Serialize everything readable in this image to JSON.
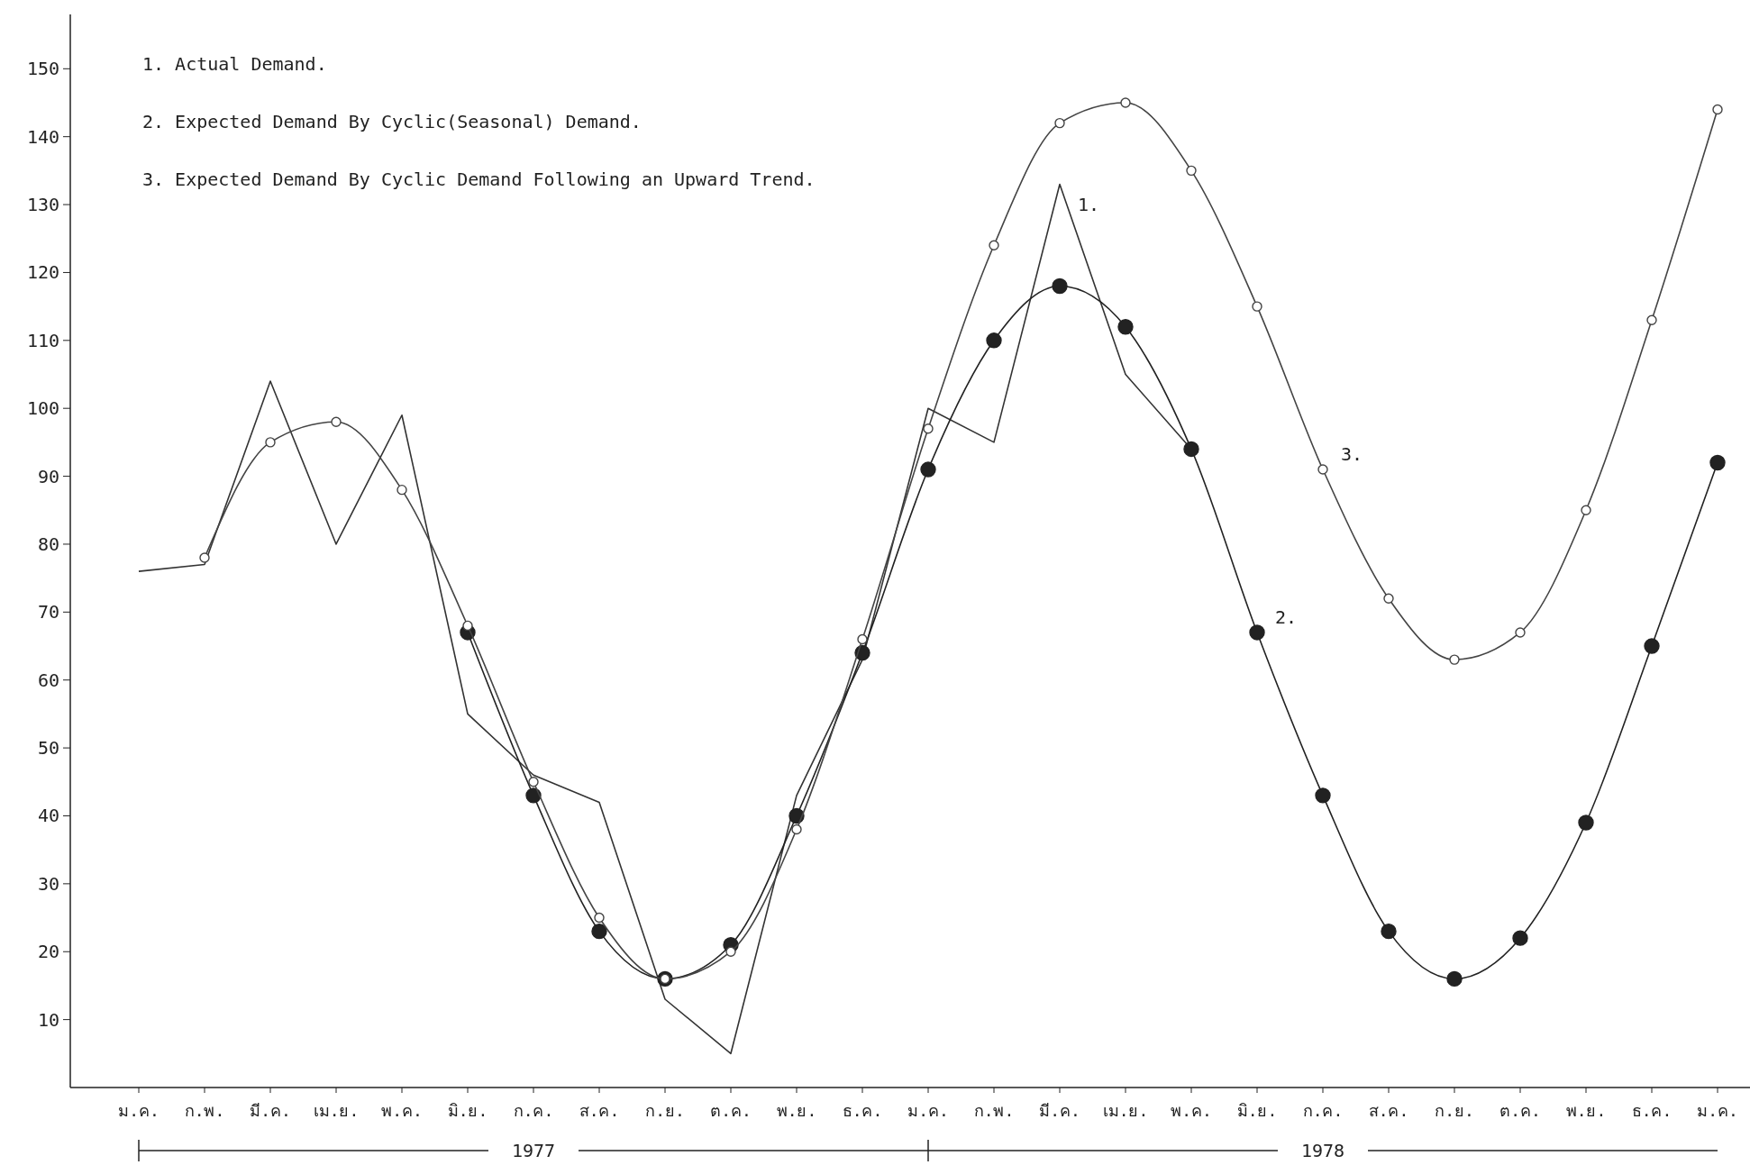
{
  "chart_data": {
    "type": "line",
    "categories": [
      "ม.ค.",
      "ก.พ.",
      "มี.ค.",
      "เม.ย.",
      "พ.ค.",
      "มิ.ย.",
      "ก.ค.",
      "ส.ค.",
      "ก.ย.",
      "ต.ค.",
      "พ.ย.",
      "ธ.ค.",
      "ม.ค.",
      "ก.พ.",
      "มี.ค.",
      "เม.ย.",
      "พ.ค.",
      "มิ.ย.",
      "ก.ค.",
      "ส.ค.",
      "ก.ย.",
      "ต.ค.",
      "พ.ย.",
      "ธ.ค.",
      "ม.ค."
    ],
    "series": [
      {
        "name": "1.",
        "color": "#333333",
        "marker": "none",
        "values": [
          76,
          77,
          104,
          80,
          99,
          55,
          46,
          42,
          13,
          5,
          43,
          63,
          100,
          95,
          133,
          105,
          94,
          null,
          null,
          null,
          null,
          null,
          null,
          null,
          null
        ]
      },
      {
        "name": "2.",
        "color": "#222222",
        "marker": "circle",
        "values": [
          null,
          null,
          null,
          null,
          null,
          67,
          43,
          23,
          16,
          21,
          40,
          64,
          91,
          110,
          118,
          112,
          94,
          67,
          43,
          23,
          16,
          22,
          39,
          65,
          92
        ]
      },
      {
        "name": "3.",
        "color": "#444444",
        "marker": "circle",
        "values": [
          null,
          78,
          95,
          98,
          88,
          68,
          45,
          25,
          16,
          20,
          38,
          66,
          97,
          124,
          142,
          145,
          135,
          115,
          91,
          72,
          63,
          67,
          85,
          113,
          144
        ]
      }
    ],
    "ylim": [
      0,
      158
    ],
    "yticks": [
      10,
      20,
      30,
      40,
      50,
      60,
      70,
      80,
      90,
      100,
      110,
      120,
      130,
      140,
      150
    ],
    "annotations": [
      "1. Actual Demand.",
      "2. Expected Demand By Cyclic(Seasonal) Demand.",
      "3. Expected Demand By Cyclic Demand Following an Upward Trend.",
      "1977",
      "1978"
    ]
  }
}
